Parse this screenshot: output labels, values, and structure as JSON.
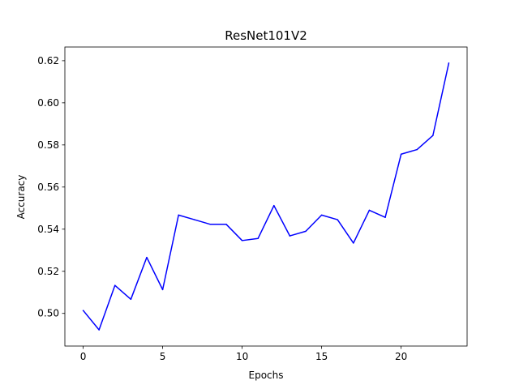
{
  "chart_data": {
    "type": "line",
    "title": "ResNet101V2",
    "xlabel": "Epochs",
    "ylabel": "Accuracy",
    "xlim": [
      -1.15,
      24.15
    ],
    "ylim": [
      0.4845,
      0.6265
    ],
    "xticks": [
      0,
      5,
      10,
      15,
      20
    ],
    "xtick_labels": [
      "0",
      "5",
      "10",
      "15",
      "20"
    ],
    "yticks": [
      0.5,
      0.52,
      0.54,
      0.56,
      0.58,
      0.6,
      0.62
    ],
    "ytick_labels": [
      "0.50",
      "0.52",
      "0.54",
      "0.56",
      "0.58",
      "0.60",
      "0.62"
    ],
    "grid": false,
    "line_color": "#0000ff",
    "series": [
      {
        "x": [
          0,
          1,
          2,
          3,
          4,
          5,
          6,
          7,
          8,
          9,
          10,
          11,
          12,
          13,
          14,
          15,
          16,
          17,
          18,
          19,
          20,
          21,
          22,
          23
        ],
        "values": [
          0.5014,
          0.4922,
          0.5133,
          0.5067,
          0.5266,
          0.5113,
          0.5467,
          0.5445,
          0.5423,
          0.5423,
          0.5346,
          0.5356,
          0.5512,
          0.5368,
          0.539,
          0.5467,
          0.5445,
          0.5334,
          0.549,
          0.5456,
          0.5756,
          0.5778,
          0.5845,
          0.6189
        ]
      }
    ]
  }
}
